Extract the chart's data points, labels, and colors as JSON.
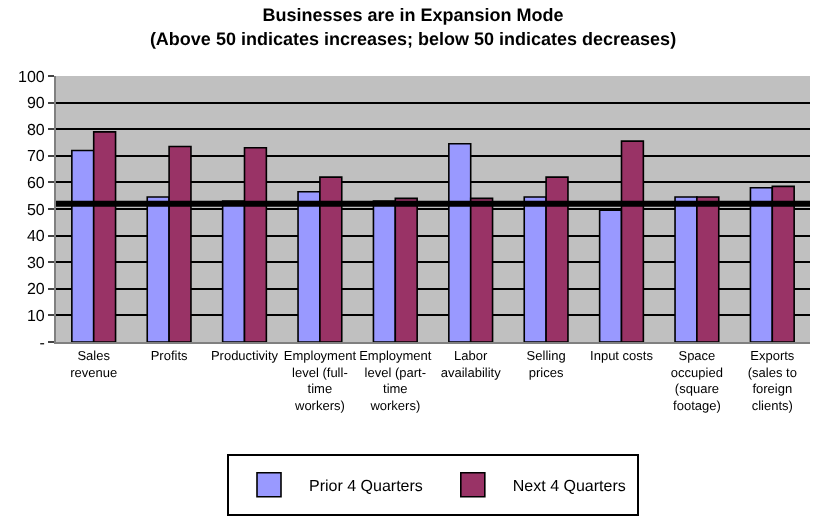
{
  "chart_data": {
    "type": "bar",
    "title": "Businesses are in Expansion Mode",
    "subtitle": "(Above 50 indicates increases; below 50 indicates decreases)",
    "categories": [
      "Sales revenue",
      "Profits",
      "Productivity",
      "Employment level (full-time workers)",
      "Employment level (part-time workers)",
      "Labor availability",
      "Selling prices",
      "Input costs",
      "Space occupied (square footage)",
      "Exports (sales to foreign clients)"
    ],
    "series": [
      {
        "name": "Prior 4 Quarters",
        "color": "#9999ff",
        "values": [
          72,
          54.5,
          53,
          56.5,
          53,
          74.5,
          54.5,
          49.5,
          54.5,
          58
        ]
      },
      {
        "name": "Next 4 Quarters",
        "color": "#993366",
        "values": [
          79,
          73.5,
          73,
          62,
          54,
          54,
          62,
          75.5,
          54.5,
          58.5
        ]
      }
    ],
    "ylim": [
      0,
      100
    ],
    "yticks": [
      {
        "value": 0,
        "label": "-"
      },
      10,
      20,
      30,
      40,
      50,
      60,
      70,
      80,
      90,
      100
    ],
    "ref_lines": [
      {
        "axis": "y",
        "value": 52,
        "color": "#000000"
      }
    ],
    "grid": "y",
    "legend": "bottom"
  }
}
